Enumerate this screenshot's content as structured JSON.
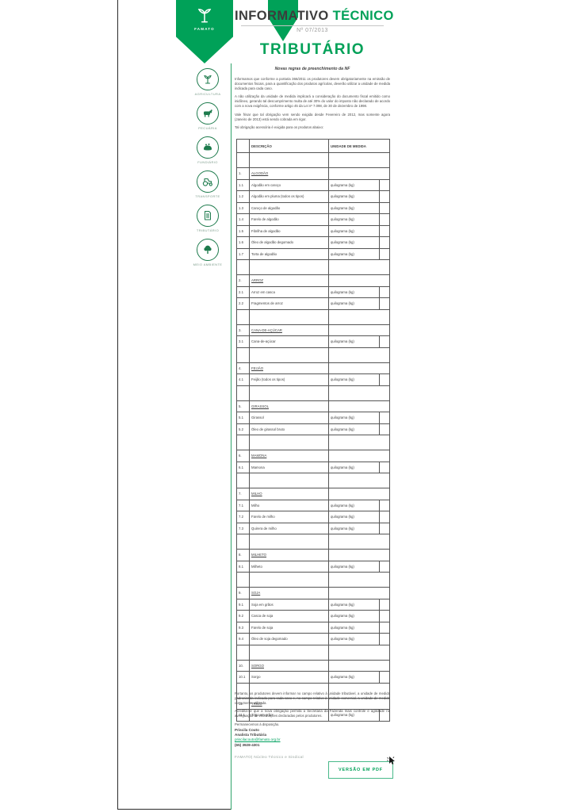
{
  "masthead": {
    "title_prefix": "INFORMATIVO",
    "title_suffix": "TÉCNICO",
    "issue_number": "Nº 07/2013"
  },
  "logo": {
    "text": "FAMATO",
    "icon": "famato-plant-emblem-icon"
  },
  "document": {
    "title": "TRIBUTÁRIO",
    "subtitle": "Novas regras de preenchimento da NF"
  },
  "colors": {
    "brand_green": "#00a158",
    "icon_green": "#1e7b4d",
    "separator_green": "#2fa36a",
    "link_green": "#00a15f"
  },
  "sidebar": {
    "items": [
      {
        "id": "agricultura",
        "label": "AGRICULTURA",
        "icon": "plant-icon"
      },
      {
        "id": "pecuaria",
        "label": "PECUÁRIA",
        "icon": "cow-icon"
      },
      {
        "id": "fundiario",
        "label": "FUNDIÁRIO",
        "icon": "hand-soil-icon"
      },
      {
        "id": "transporte",
        "label": "TRANSPORTE",
        "icon": "tractor-icon"
      },
      {
        "id": "tributario",
        "label": "TRIBUTÁRIO",
        "icon": "document-icon"
      },
      {
        "id": "meio-ambiente",
        "label": "MEIO AMBIENTE",
        "icon": "tree-icon"
      }
    ]
  },
  "intro_paragraphs": [
    "Informamos que conforme a portaria 366/2011 os produtores devem obrigatoriamente na emissão de documentos fiscais, para a quantificação dos produtos agrícolas, deverão utilizar a unidade de medida indicada para cada caso.",
    "A não utilização da unidade de medida implicará a consideração do documento fiscal emitido como inidôneo, gerando tal descumprimento multa de até 30% do valor do imposto não declarado de acordo com a nova exigência, conforme artigo 45 da Lei nº 7.098, de 30 de dezembro de 1998.",
    "Vale frisar que tal obrigação vem sendo exigida desde Fevereiro de 2012, mas somente agora (Janeiro de 2013) está sendo cobrada em rigor.",
    "Tal obrigação acessória é exigida para os produtos abaixo:"
  ],
  "table": {
    "headers": {
      "description": "DESCRIÇÃO",
      "unit": "UNIDADE DE MEDIDA"
    },
    "sections": [
      {
        "number": "1.",
        "name": "ALGODÃO",
        "items": [
          {
            "number": "1.1",
            "name": "Algodão em caroço",
            "unit": "quilograma (kg)"
          },
          {
            "number": "1.2",
            "name": "Algodão em pluma (todos os tipos)",
            "unit": "quilograma (kg)"
          },
          {
            "number": "1.3",
            "name": "Caroço de algodão",
            "unit": "quilograma (kg)"
          },
          {
            "number": "1.4",
            "name": "Farelo de algodão",
            "unit": "quilograma (kg)"
          },
          {
            "number": "1.5",
            "name": "Fibrilha de algodão",
            "unit": "quilograma (kg)"
          },
          {
            "number": "1.6",
            "name": "Óleo de algodão degomado",
            "unit": "quilograma (kg)"
          },
          {
            "number": "1.7",
            "name": "Torta de algodão",
            "unit": "quilograma (kg)"
          }
        ]
      },
      {
        "number": "2.",
        "name": "ARROZ",
        "items": [
          {
            "number": "2.1",
            "name": "Arroz em casca",
            "unit": "quilograma (kg)"
          },
          {
            "number": "2.2",
            "name": "Fragmentos de arroz",
            "unit": "quilograma (kg)"
          }
        ]
      },
      {
        "number": "3.",
        "name": "CANA-DE-AÇÚCAR",
        "items": [
          {
            "number": "3.1",
            "name": "Cana-de-açúcar",
            "unit": "quilograma (kg)"
          }
        ]
      },
      {
        "number": "4.",
        "name": "FEIJÃO",
        "items": [
          {
            "number": "4.1",
            "name": "Feijão (todos os tipos)",
            "unit": "quilograma (kg)"
          }
        ]
      },
      {
        "number": "5.",
        "name": "GIRASSOL",
        "items": [
          {
            "number": "5.1",
            "name": "Girassol",
            "unit": "quilograma (kg)"
          },
          {
            "number": "5.2",
            "name": "Óleo de girassol bruto",
            "unit": "quilograma (kg)"
          }
        ]
      },
      {
        "number": "6.",
        "name": "MAMONA",
        "items": [
          {
            "number": "6.1",
            "name": "Mamona",
            "unit": "quilograma (kg)"
          }
        ]
      },
      {
        "number": "7.",
        "name": "MILHO",
        "items": [
          {
            "number": "7.1",
            "name": "Milho",
            "unit": "quilograma (kg)"
          },
          {
            "number": "7.2",
            "name": "Farelo de milho",
            "unit": "quilograma (kg)"
          },
          {
            "number": "7.3",
            "name": "Quirera de milho",
            "unit": "quilograma (kg)"
          }
        ]
      },
      {
        "number": "8.",
        "name": "MILHETO",
        "items": [
          {
            "number": "8.1",
            "name": "Milheto",
            "unit": "quilograma (kg)"
          }
        ]
      },
      {
        "number": "9.",
        "name": "SOJA",
        "items": [
          {
            "number": "9.1",
            "name": "Soja em grãos",
            "unit": "quilograma (kg)"
          },
          {
            "number": "9.2",
            "name": "Casca de soja",
            "unit": "quilograma (kg)"
          },
          {
            "number": "9.3",
            "name": "Farelo de soja",
            "unit": "quilograma (kg)"
          },
          {
            "number": "9.4",
            "name": "Óleo de soja degomado",
            "unit": "quilograma (kg)"
          }
        ]
      },
      {
        "number": "10.",
        "name": "SORGO",
        "items": [
          {
            "number": "10.1",
            "name": "Sorgo",
            "unit": "quilograma (kg)"
          }
        ]
      },
      {
        "number": "11.",
        "name": "TRIGO",
        "items": [
          {
            "number": "11.1",
            "name": "Trigo em grão",
            "unit": "quilograma (kg)"
          }
        ]
      }
    ]
  },
  "closing_paragraphs": [
    "Portanto, os produtores devem informar no campo relativo à unidade tributável, a unidade de medida padronizada indicada para cada caso e, no campo relativo à unidade comercial, a unidade de medida comumente utilizada.",
    "Acredita-se que a nova obrigação permita a Secretaria da Fazenda mais controle e agilidade na averiguação de informações declaradas pelos produtores.",
    "Permanecemos à disposição."
  ],
  "signature": {
    "name": "Priscila Couto",
    "role": "Analista Tributária",
    "email": "priscilacouto@famato.org.br",
    "phone": "(65) 3928-4301"
  },
  "footer": {
    "tagline": "FAMATO| Núcleo Técnico e Sindical",
    "pdf_button_label": "VERSÃO EM PDF"
  }
}
